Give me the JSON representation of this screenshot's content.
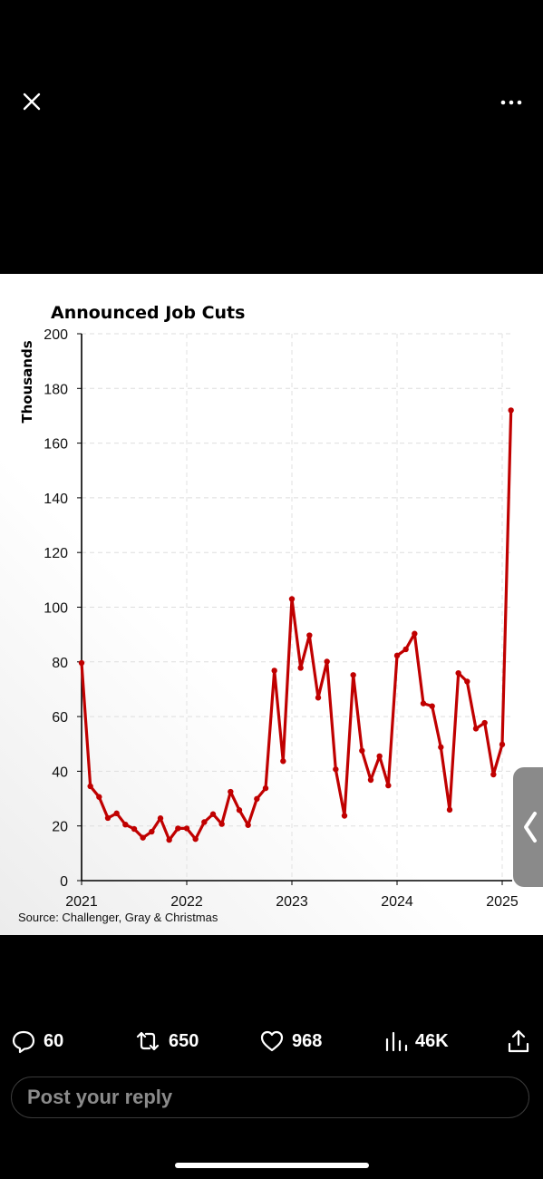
{
  "viewer": {
    "close_icon": "close-icon",
    "more_icon": "more-horizontal-icon"
  },
  "chart_data": {
    "type": "line",
    "title": "Announced Job Cuts",
    "ylabel": "Thousands",
    "xlabel": "",
    "source": "Source: Challenger, Gray & Christmas",
    "ylim": [
      0,
      200
    ],
    "yticks": [
      0,
      20,
      40,
      60,
      80,
      100,
      120,
      140,
      160,
      180,
      200
    ],
    "xticks": [
      "2021",
      "2022",
      "2023",
      "2024",
      "2025"
    ],
    "grid": true,
    "line_color": "#c00000",
    "x_start": "2021-01",
    "x_end": "2025-01",
    "series": [
      {
        "values": [
          79.6,
          34.5,
          30.6,
          22.9,
          24.6,
          20.5,
          18.9,
          15.7,
          17.9,
          22.8,
          14.9,
          19.1,
          19.1,
          15.2,
          21.4,
          24.3,
          20.7,
          32.5,
          25.8,
          20.3,
          29.9,
          33.8,
          76.8,
          43.7,
          103.0,
          77.8,
          89.7,
          66.9,
          80.1,
          40.7,
          23.7,
          75.2,
          47.5,
          36.8,
          45.5,
          34.8,
          82.3,
          84.6,
          90.3,
          64.8,
          63.8,
          48.8,
          25.9,
          75.9,
          72.8,
          55.6,
          57.7,
          38.8,
          49.8,
          172.0
        ]
      }
    ]
  },
  "side_tab": {
    "icon": "chevron-left-icon"
  },
  "actions": {
    "replies": "60",
    "reposts": "650",
    "likes": "968",
    "views": "46K"
  },
  "reply": {
    "placeholder": "Post your reply"
  }
}
